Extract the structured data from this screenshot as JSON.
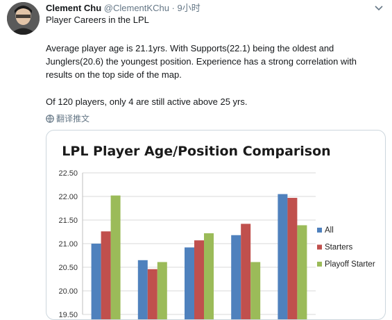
{
  "tweet": {
    "author_name": "Clement Chu",
    "author_handle": "@ClementKChu",
    "separator": " · ",
    "timestamp": "9小时",
    "subtitle": "Player Careers in the LPL",
    "paragraph1": "Average player age is 21.1yrs. With Supports(22.1) being the oldest and Junglers(20.6) the youngest position. Experience has a strong correlation with results on the top side of the map.",
    "paragraph2": "Of 120 players, only 4 are still active above 25 yrs.",
    "translate_label": "翻译推文",
    "icons": {
      "menu": "chevron-down-icon",
      "translate": "globe-icon",
      "avatar": "avatar"
    }
  },
  "chart_data": {
    "type": "bar",
    "title": "LPL Player Age/Position Comparison",
    "xlabel": "",
    "ylabel": "",
    "categories": [
      "",
      "",
      "",
      "",
      ""
    ],
    "series": [
      {
        "name": "All",
        "color": "#4f81bd",
        "values": [
          21.0,
          20.65,
          20.92,
          21.18,
          22.05
        ]
      },
      {
        "name": "Starters",
        "color": "#c0504d",
        "values": [
          21.26,
          20.46,
          21.07,
          21.42,
          21.97
        ]
      },
      {
        "name": "Playoff Starter",
        "color": "#9bbb59",
        "values": [
          22.02,
          20.61,
          21.22,
          20.61,
          21.39
        ]
      }
    ],
    "ylim": [
      19.5,
      22.5
    ],
    "yticks": [
      "22.50",
      "22.00",
      "21.50",
      "21.00",
      "20.50",
      "20.00",
      "19.50"
    ],
    "grid": true,
    "legend_position": "right"
  }
}
